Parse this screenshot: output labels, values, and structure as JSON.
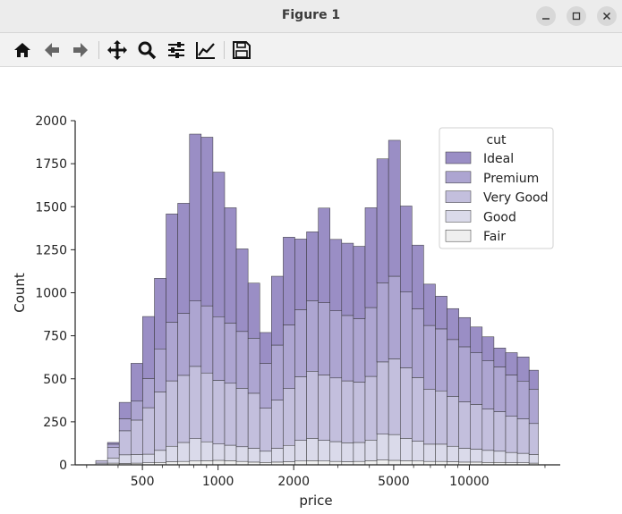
{
  "window": {
    "title": "Figure 1"
  },
  "toolbar": {
    "icons": [
      "home-icon",
      "back-icon",
      "forward-icon",
      "pan-icon",
      "zoom-icon",
      "configure-subplots-icon",
      "edit-axis-icon",
      "save-icon"
    ]
  },
  "colors": {
    "fair": "#efefef",
    "good": "#dadaea",
    "very_good": "#c3bfdd",
    "premium": "#ada5d1",
    "ideal": "#9a8ec5",
    "edge": "#333333"
  },
  "chart_data": {
    "type": "bar",
    "stacked": true,
    "x_scale": "log",
    "xlabel": "price",
    "ylabel": "Count",
    "xlim": [
      270,
      23000
    ],
    "ylim": [
      0,
      2000
    ],
    "x_ticks": [
      500,
      1000,
      2000,
      5000,
      10000
    ],
    "x_tick_labels": [
      "500",
      "1000",
      "2000",
      "5000",
      "10000"
    ],
    "y_ticks": [
      0,
      250,
      500,
      750,
      1000,
      1250,
      1500,
      1750,
      2000
    ],
    "y_tick_labels": [
      "0",
      "250",
      "500",
      "750",
      "1000",
      "1250",
      "1500",
      "1750",
      "2000"
    ],
    "bin_edges": [
      326,
      363,
      404,
      450,
      501,
      558,
      621,
      691,
      770,
      857,
      954,
      1062,
      1182,
      1316,
      1465,
      1631,
      1816,
      2021,
      2250,
      2505,
      2789,
      3105,
      3457,
      3848,
      4284,
      4769,
      5310,
      5911,
      6580,
      7326,
      8155,
      9079,
      10107,
      11252,
      12527,
      13946,
      15525,
      17284,
      18823
    ],
    "legend": {
      "title": "cut",
      "position": "upper right",
      "entries": [
        "Ideal",
        "Premium",
        "Very Good",
        "Good",
        "Fair"
      ]
    },
    "series": [
      {
        "name": "Fair",
        "values": [
          0,
          10,
          8,
          10,
          12,
          14,
          18,
          20,
          22,
          24,
          26,
          24,
          20,
          16,
          14,
          16,
          18,
          22,
          24,
          22,
          20,
          18,
          20,
          24,
          28,
          26,
          24,
          22,
          20,
          20,
          18,
          16,
          16,
          14,
          14,
          12,
          12,
          10
        ]
      },
      {
        "name": "Good",
        "values": [
          10,
          30,
          50,
          50,
          50,
          70,
          90,
          110,
          130,
          110,
          95,
          90,
          85,
          80,
          65,
          80,
          95,
          120,
          130,
          120,
          115,
          110,
          110,
          120,
          150,
          150,
          130,
          115,
          100,
          100,
          90,
          80,
          75,
          70,
          65,
          60,
          55,
          50
        ]
      },
      {
        "name": "Very Good",
        "values": [
          15,
          60,
          140,
          200,
          270,
          340,
          380,
          390,
          420,
          400,
          370,
          360,
          340,
          320,
          250,
          280,
          330,
          370,
          390,
          380,
          370,
          360,
          350,
          370,
          420,
          440,
          410,
          370,
          320,
          310,
          290,
          270,
          260,
          240,
          230,
          210,
          200,
          180
        ]
      },
      {
        "name": "Premium",
        "values": [
          0,
          20,
          70,
          110,
          170,
          250,
          340,
          360,
          380,
          390,
          370,
          350,
          330,
          320,
          260,
          320,
          370,
          390,
          410,
          420,
          390,
          380,
          370,
          400,
          460,
          480,
          440,
          400,
          370,
          360,
          330,
          320,
          300,
          280,
          260,
          240,
          220,
          200
        ]
      },
      {
        "name": "Ideal",
        "values": [
          0,
          10,
          95,
          220,
          360,
          410,
          630,
          640,
          970,
          980,
          840,
          670,
          480,
          320,
          180,
          400,
          510,
          410,
          400,
          550,
          415,
          420,
          420,
          580,
          720,
          790,
          500,
          370,
          240,
          190,
          180,
          170,
          150,
          140,
          110,
          130,
          140,
          110
        ]
      }
    ]
  }
}
